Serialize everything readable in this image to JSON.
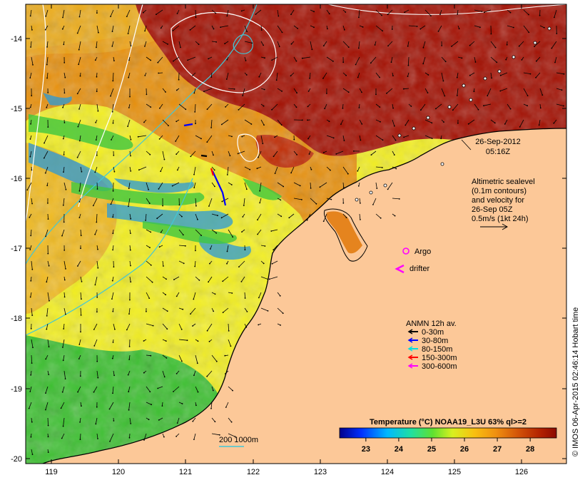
{
  "map": {
    "date": "26-Sep-2012",
    "time": "05:16Z",
    "altimetry_lines": [
      "Altimetric sealevel",
      "(0.1m contours)",
      "and velocity for",
      "26-Sep 05Z",
      "0.5m/s (1kt 24h)"
    ],
    "argo_label": "Argo",
    "drifter_label": "drifter",
    "anmn_title": "ANMN 12h av.",
    "anmn_legend": [
      {
        "label": "0-30m",
        "color": "#000000"
      },
      {
        "label": "30-80m",
        "color": "#0000ff"
      },
      {
        "label": "80-150m",
        "color": "#00e0e0"
      },
      {
        "label": "150-300m",
        "color": "#ff0000"
      },
      {
        "label": "300-600m",
        "color": "#ff00ff"
      }
    ],
    "contour_label": "200  1000m",
    "lat_ticks": [
      "-14",
      "-15",
      "-16",
      "-17",
      "-18",
      "-19",
      "-20"
    ],
    "lon_ticks": [
      "119",
      "120",
      "121",
      "122",
      "123",
      "124",
      "125",
      "126"
    ],
    "colorbar": {
      "title": "Temperature (°C) NOAA19_L3U 63% ql>=2",
      "ticks": [
        "23",
        "24",
        "25",
        "26",
        "27",
        "28"
      ],
      "range": [
        22.2,
        28.8
      ]
    },
    "credit": "© IMOS 06-Apr-2015 02:46:14 Hobart time",
    "colors": {
      "land": "#fcc898",
      "warm": "#a30e00",
      "mid": "#e07808",
      "cool": "#f4f020",
      "coldest": "#3cc030",
      "argo": "#ff00ff",
      "contour_200": "#40c8d8",
      "contour_1000": "#ffffff"
    }
  }
}
